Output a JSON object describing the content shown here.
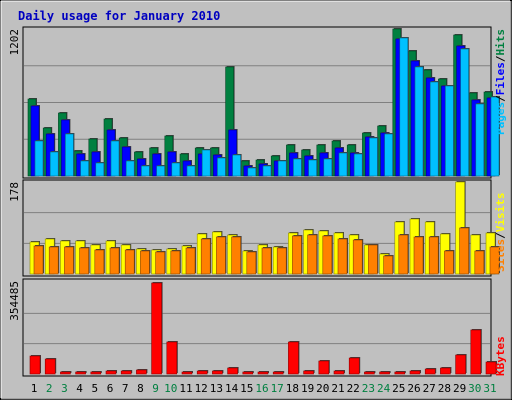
{
  "chart_data": {
    "type": "bar",
    "title": "Daily usage for January 2010",
    "categories": [
      "1",
      "2",
      "3",
      "4",
      "5",
      "6",
      "7",
      "8",
      "9",
      "10",
      "11",
      "12",
      "13",
      "14",
      "15",
      "16",
      "17",
      "18",
      "19",
      "20",
      "21",
      "22",
      "23",
      "24",
      "25",
      "26",
      "27",
      "28",
      "29",
      "30",
      "31"
    ],
    "weekend_days": [
      "2",
      "3",
      "9",
      "10",
      "16",
      "17",
      "23",
      "24",
      "30",
      "31"
    ],
    "panels": [
      {
        "name": "top",
        "ymax_label": "1202",
        "ymax": 1202,
        "right_label": [
          "Pages",
          "Files",
          "Hits"
        ],
        "series": [
          {
            "name": "Hits",
            "color": "#008040",
            "values": [
              626,
              396,
              516,
              207,
              302,
              462,
              311,
              200,
              230,
              330,
              180,
              230,
              225,
              890,
              120,
              130,
              160,
              250,
              210,
              255,
              285,
              255,
              355,
              405,
              1202,
              1020,
              870,
              790,
              1150,
              680,
              690
            ]
          },
          {
            "name": "Files",
            "color": "#0000ff",
            "values": [
              570,
              340,
              460,
              180,
              200,
              380,
              235,
              135,
              180,
              200,
              125,
              180,
              170,
              380,
              80,
              100,
              120,
              190,
              160,
              190,
              225,
              190,
              320,
              355,
              1120,
              940,
              800,
              740,
              1060,
              620,
              640
            ]
          },
          {
            "name": "Pages",
            "color": "#00c0ff",
            "values": [
              290,
              195,
              345,
              120,
              110,
              285,
              120,
              80,
              85,
              110,
              85,
              215,
              145,
              170,
              65,
              80,
              125,
              135,
              130,
              140,
              185,
              180,
              310,
              340,
              1130,
              890,
              770,
              740,
              1040,
              585,
              650
            ]
          }
        ]
      },
      {
        "name": "middle",
        "ymax_label": "178",
        "ymax": 178,
        "right_label": [
          "Sites",
          "Visits"
        ],
        "series": [
          {
            "name": "Visits",
            "color": "#ffff00",
            "values": [
              62,
              68,
              64,
              63,
              57,
              64,
              56,
              49,
              46,
              48,
              54,
              78,
              82,
              76,
              44,
              56,
              52,
              79,
              86,
              84,
              79,
              76,
              57,
              38,
              101,
              107,
              101,
              78,
              178,
              76,
              80
            ]
          },
          {
            "name": "Sites",
            "color": "#ff8000",
            "values": [
              54,
              53,
              52,
              51,
              47,
              50,
              47,
              44,
              42,
              44,
              51,
              68,
              71,
              71,
              42,
              51,
              51,
              74,
              75,
              74,
              67,
              66,
              57,
              35,
              76,
              72,
              72,
              45,
              89,
              45,
              53
            ]
          }
        ]
      },
      {
        "name": "bottom",
        "ymax_label": "354485",
        "ymax": 354485,
        "right_label": [
          "KBytes"
        ],
        "series": [
          {
            "name": "KBytes",
            "color": "#ff0000",
            "values": [
              72000,
              58000,
              8000,
              6000,
              9000,
              11000,
              12000,
              14000,
              354485,
              123000,
              6000,
              10000,
              12000,
              22000,
              6000,
              8000,
              8000,
              124000,
              12000,
              50000,
              12000,
              62000,
              8000,
              6000,
              8000,
              10000,
              18000,
              22000,
              75000,
              173000,
              47000
            ]
          }
        ]
      }
    ]
  }
}
